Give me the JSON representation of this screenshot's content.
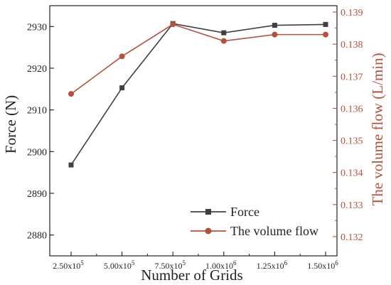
{
  "chart_data": {
    "type": "line",
    "x": [
      "2.50x10^5",
      "5.00x10^5",
      "7.50x10^5",
      "1.00x10^6",
      "1.25x10^6",
      "1.50x10^6"
    ],
    "x_tick_labels": [
      {
        "mantissa": "2.50x10",
        "exp": "5"
      },
      {
        "mantissa": "5.00x10",
        "exp": "5"
      },
      {
        "mantissa": "7.50x10",
        "exp": "5"
      },
      {
        "mantissa": "1.00x10",
        "exp": "6"
      },
      {
        "mantissa": "1.25x10",
        "exp": "6"
      },
      {
        "mantissa": "1.50x10",
        "exp": "6"
      }
    ],
    "xlabel": "Number of Grids",
    "ylabel_left": "Force (N)",
    "ylabel_right": "The volume flow (L/min)",
    "ylim_left": [
      2875,
      2935
    ],
    "ylim_right": [
      0.1314,
      0.1392
    ],
    "yticks_left": [
      2880,
      2890,
      2900,
      2910,
      2920,
      2930
    ],
    "yticks_right": [
      "0.132",
      "0.133",
      "0.134",
      "0.135",
      "0.136",
      "0.137",
      "0.138",
      "0.139"
    ],
    "grid": false,
    "legend_position": "bottom-right",
    "series": [
      {
        "name": "Force",
        "axis": "left",
        "color": "#404040",
        "marker": "square",
        "values": [
          2896.8,
          2915.3,
          2930.7,
          2928.5,
          2930.3,
          2930.5
        ]
      },
      {
        "name": "The volume flow",
        "axis": "right",
        "color": "#b5503c",
        "marker": "circle",
        "values": [
          0.13645,
          0.13762,
          0.13862,
          0.1381,
          0.1383,
          0.1383
        ]
      }
    ]
  }
}
